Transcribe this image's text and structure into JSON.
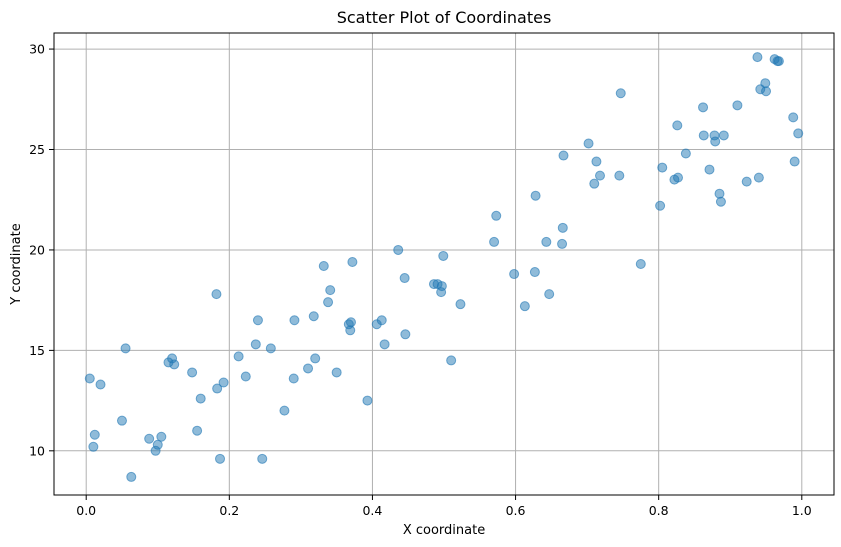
{
  "chart_data": {
    "type": "scatter",
    "title": "Scatter Plot of Coordinates",
    "xlabel": "X coordinate",
    "ylabel": "Y coordinate",
    "xlim": [
      -0.045,
      1.045
    ],
    "ylim": [
      7.8,
      30.8
    ],
    "xticks": [
      0.0,
      0.2,
      0.4,
      0.6,
      0.8,
      1.0
    ],
    "xtick_labels": [
      "0.0",
      "0.2",
      "0.4",
      "0.6",
      "0.8",
      "1.0"
    ],
    "yticks": [
      10,
      15,
      20,
      25,
      30
    ],
    "ytick_labels": [
      "10",
      "15",
      "20",
      "25",
      "30"
    ],
    "grid": true,
    "color": "#1f77b4",
    "points": [
      [
        0.005,
        13.6
      ],
      [
        0.01,
        10.2
      ],
      [
        0.012,
        10.8
      ],
      [
        0.02,
        13.3
      ],
      [
        0.05,
        11.5
      ],
      [
        0.055,
        15.1
      ],
      [
        0.063,
        8.7
      ],
      [
        0.088,
        10.6
      ],
      [
        0.097,
        10.0
      ],
      [
        0.1,
        10.3
      ],
      [
        0.105,
        10.7
      ],
      [
        0.115,
        14.4
      ],
      [
        0.12,
        14.6
      ],
      [
        0.123,
        14.3
      ],
      [
        0.148,
        13.9
      ],
      [
        0.155,
        11.0
      ],
      [
        0.16,
        12.6
      ],
      [
        0.182,
        17.8
      ],
      [
        0.183,
        13.1
      ],
      [
        0.187,
        9.6
      ],
      [
        0.192,
        13.4
      ],
      [
        0.213,
        14.7
      ],
      [
        0.223,
        13.7
      ],
      [
        0.237,
        15.3
      ],
      [
        0.24,
        16.5
      ],
      [
        0.246,
        9.6
      ],
      [
        0.258,
        15.1
      ],
      [
        0.277,
        12.0
      ],
      [
        0.29,
        13.6
      ],
      [
        0.291,
        16.5
      ],
      [
        0.31,
        14.1
      ],
      [
        0.318,
        16.7
      ],
      [
        0.32,
        14.6
      ],
      [
        0.332,
        19.2
      ],
      [
        0.338,
        17.4
      ],
      [
        0.341,
        18.0
      ],
      [
        0.35,
        13.9
      ],
      [
        0.367,
        16.3
      ],
      [
        0.369,
        16.0
      ],
      [
        0.37,
        16.4
      ],
      [
        0.372,
        19.4
      ],
      [
        0.393,
        12.5
      ],
      [
        0.406,
        16.3
      ],
      [
        0.413,
        16.5
      ],
      [
        0.417,
        15.3
      ],
      [
        0.436,
        20.0
      ],
      [
        0.445,
        18.6
      ],
      [
        0.446,
        15.8
      ],
      [
        0.486,
        18.3
      ],
      [
        0.491,
        18.3
      ],
      [
        0.496,
        17.9
      ],
      [
        0.497,
        18.2
      ],
      [
        0.499,
        19.7
      ],
      [
        0.51,
        14.5
      ],
      [
        0.523,
        17.3
      ],
      [
        0.57,
        20.4
      ],
      [
        0.573,
        21.7
      ],
      [
        0.598,
        18.8
      ],
      [
        0.613,
        17.2
      ],
      [
        0.627,
        18.9
      ],
      [
        0.628,
        22.7
      ],
      [
        0.643,
        20.4
      ],
      [
        0.647,
        17.8
      ],
      [
        0.665,
        20.3
      ],
      [
        0.666,
        21.1
      ],
      [
        0.667,
        24.7
      ],
      [
        0.702,
        25.3
      ],
      [
        0.71,
        23.3
      ],
      [
        0.713,
        24.4
      ],
      [
        0.718,
        23.7
      ],
      [
        0.745,
        23.7
      ],
      [
        0.747,
        27.8
      ],
      [
        0.775,
        19.3
      ],
      [
        0.802,
        22.2
      ],
      [
        0.805,
        24.1
      ],
      [
        0.822,
        23.5
      ],
      [
        0.826,
        26.2
      ],
      [
        0.827,
        23.6
      ],
      [
        0.838,
        24.8
      ],
      [
        0.862,
        27.1
      ],
      [
        0.863,
        25.7
      ],
      [
        0.871,
        24.0
      ],
      [
        0.878,
        25.7
      ],
      [
        0.879,
        25.4
      ],
      [
        0.885,
        22.8
      ],
      [
        0.887,
        22.4
      ],
      [
        0.891,
        25.7
      ],
      [
        0.91,
        27.2
      ],
      [
        0.923,
        23.4
      ],
      [
        0.938,
        29.6
      ],
      [
        0.94,
        23.6
      ],
      [
        0.942,
        28.0
      ],
      [
        0.949,
        28.3
      ],
      [
        0.95,
        27.9
      ],
      [
        0.962,
        29.5
      ],
      [
        0.966,
        29.4
      ],
      [
        0.968,
        29.4
      ],
      [
        0.988,
        26.6
      ],
      [
        0.99,
        24.4
      ],
      [
        0.995,
        25.8
      ]
    ]
  }
}
